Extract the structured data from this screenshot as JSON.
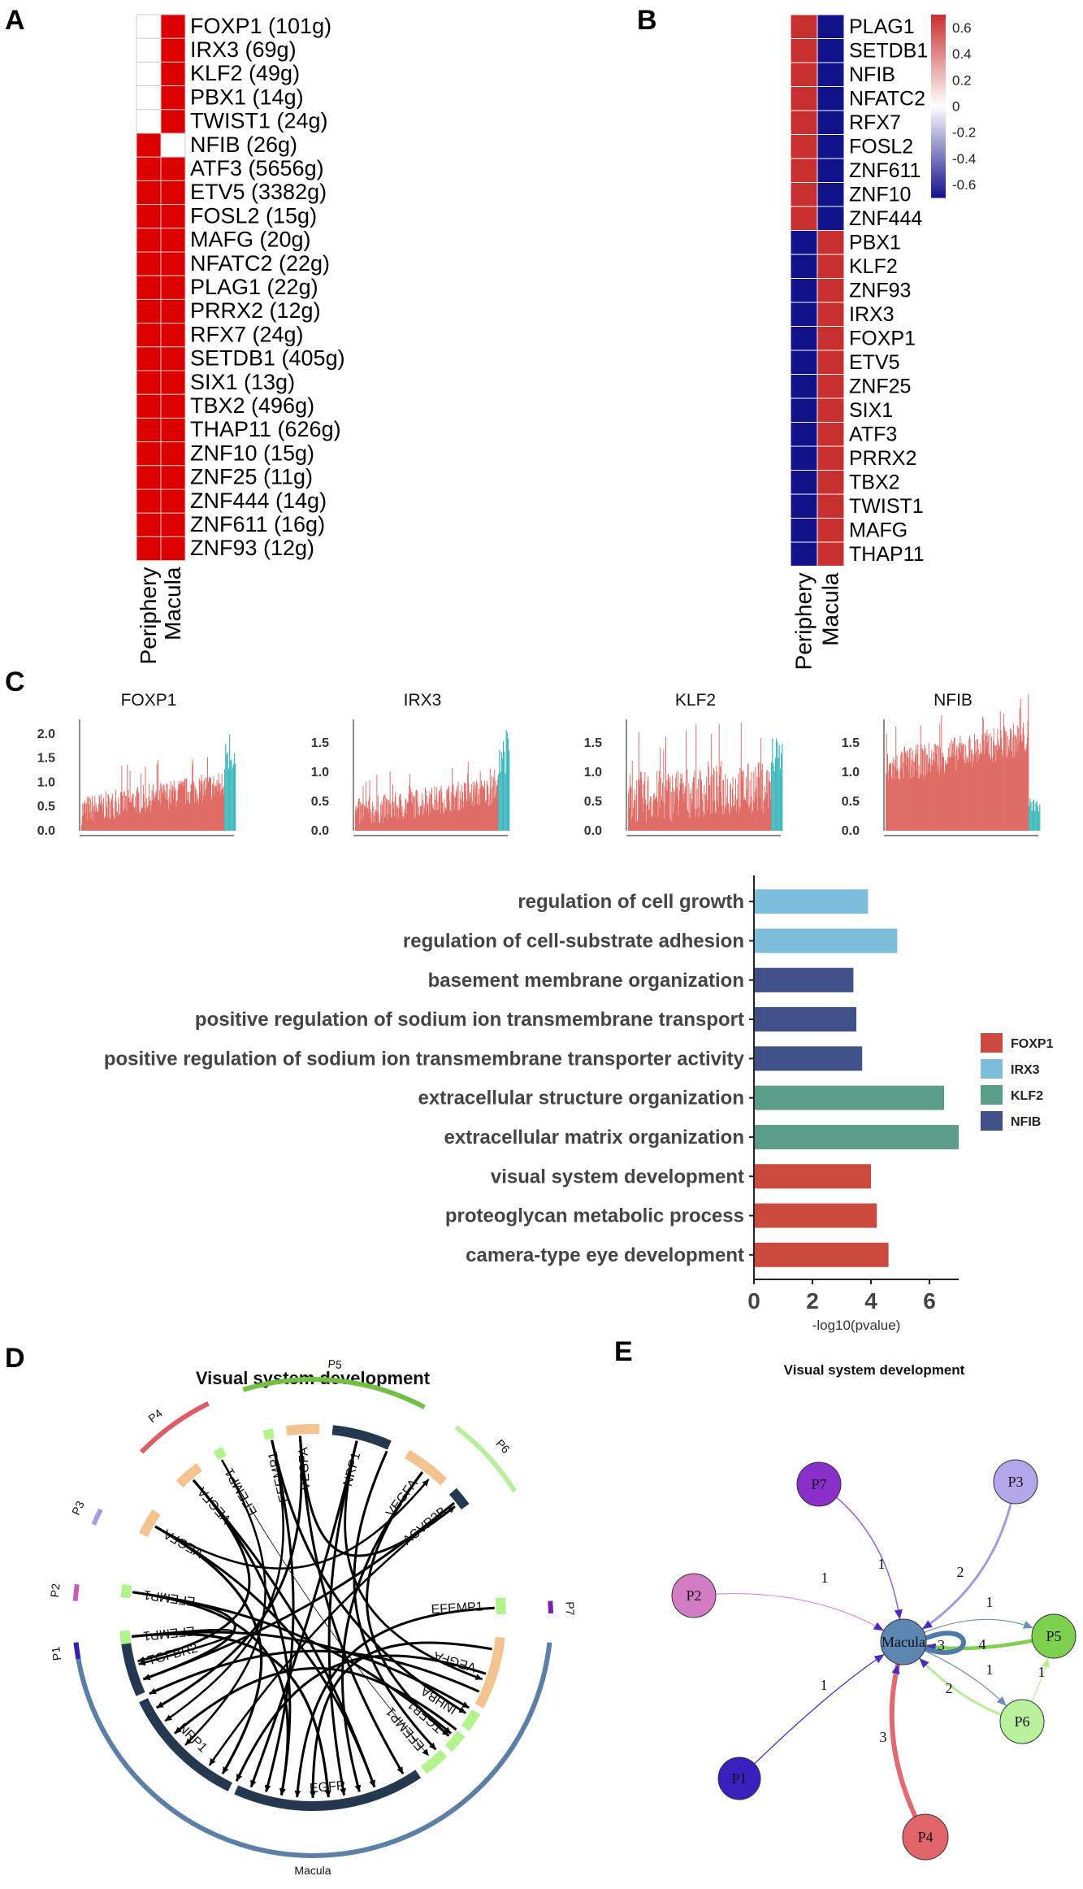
{
  "panel_labels": {
    "a": "A",
    "b": "B",
    "c": "C",
    "d": "D",
    "e": "E"
  },
  "chart_data": [
    {
      "type": "heatmap",
      "panel": "A",
      "columns": [
        "Periphery",
        "Macula"
      ],
      "rows": [
        "FOXP1 (101g)",
        "IRX3 (69g)",
        "KLF2 (49g)",
        "PBX1 (14g)",
        "TWIST1 (24g)",
        "NFIB (26g)",
        "ATF3 (5656g)",
        "ETV5 (3382g)",
        "FOSL2 (15g)",
        "MAFG (20g)",
        "NFATC2 (22g)",
        "PLAG1 (22g)",
        "PRRX2 (12g)",
        "RFX7 (24g)",
        "SETDB1 (405g)",
        "SIX1 (13g)",
        "TBX2 (496g)",
        "THAP11 (626g)",
        "ZNF10 (15g)",
        "ZNF25 (11g)",
        "ZNF444 (14g)",
        "ZNF611 (16g)",
        "ZNF93 (12g)"
      ],
      "values": [
        [
          0,
          1
        ],
        [
          0,
          1
        ],
        [
          0,
          1
        ],
        [
          0,
          1
        ],
        [
          0,
          1
        ],
        [
          1,
          0
        ],
        [
          1,
          1
        ],
        [
          1,
          1
        ],
        [
          1,
          1
        ],
        [
          1,
          1
        ],
        [
          1,
          1
        ],
        [
          1,
          1
        ],
        [
          1,
          1
        ],
        [
          1,
          1
        ],
        [
          1,
          1
        ],
        [
          1,
          1
        ],
        [
          1,
          1
        ],
        [
          1,
          1
        ],
        [
          1,
          1
        ],
        [
          1,
          1
        ],
        [
          1,
          1
        ],
        [
          1,
          1
        ],
        [
          1,
          1
        ]
      ],
      "on_color": "#dd0000",
      "off_color": "#ffffff"
    },
    {
      "type": "heatmap",
      "panel": "B",
      "columns": [
        "Periphery",
        "Macula"
      ],
      "rows": [
        "PLAG1",
        "SETDB1",
        "NFIB",
        "NFATC2",
        "RFX7",
        "FOSL2",
        "ZNF611",
        "ZNF10",
        "ZNF444",
        "PBX1",
        "KLF2",
        "ZNF93",
        "IRX3",
        "FOXP1",
        "ETV5",
        "ZNF25",
        "SIX1",
        "ATF3",
        "PRRX2",
        "TBX2",
        "TWIST1",
        "MAFG",
        "THAP11"
      ],
      "values": [
        [
          0.7,
          -0.7
        ],
        [
          0.7,
          -0.7
        ],
        [
          0.7,
          -0.7
        ],
        [
          0.7,
          -0.7
        ],
        [
          0.7,
          -0.7
        ],
        [
          0.7,
          -0.7
        ],
        [
          0.7,
          -0.7
        ],
        [
          0.7,
          -0.7
        ],
        [
          0.7,
          -0.7
        ],
        [
          -0.7,
          0.7
        ],
        [
          -0.7,
          0.7
        ],
        [
          -0.7,
          0.7
        ],
        [
          -0.7,
          0.7
        ],
        [
          -0.7,
          0.7
        ],
        [
          -0.7,
          0.7
        ],
        [
          -0.7,
          0.7
        ],
        [
          -0.7,
          0.7
        ],
        [
          -0.7,
          0.7
        ],
        [
          -0.7,
          0.7
        ],
        [
          -0.7,
          0.7
        ],
        [
          -0.7,
          0.7
        ],
        [
          -0.7,
          0.7
        ],
        [
          -0.7,
          0.7
        ]
      ],
      "colorbar_ticks": [
        "0.6",
        "0.4",
        "0.2",
        "0",
        "-0.2",
        "-0.4",
        "-0.6"
      ],
      "colorbar_range": [
        -0.7,
        0.7
      ],
      "high_color": "#c8302f",
      "low_color": "#12128a"
    },
    {
      "type": "bar",
      "panel": "C",
      "subplots": [
        {
          "title": "FOXP1",
          "yticks": [
            "2.0",
            "1.5",
            "1.0",
            "0.5",
            "0.0"
          ],
          "ylim": [
            0,
            2.3
          ],
          "n_bars": 260,
          "base_level": 0.42,
          "end_level": 0.95,
          "spread": 0.3,
          "teal_level": 2.15
        },
        {
          "title": "IRX3",
          "yticks": [
            "1.5",
            "1.0",
            "0.5",
            "0.0"
          ],
          "ylim": [
            0,
            1.9
          ],
          "n_bars": 260,
          "base_level": 0.3,
          "end_level": 0.7,
          "spread": 0.25,
          "teal_level": 1.75
        },
        {
          "title": "KLF2",
          "yticks": [
            "1.5",
            "1.0",
            "0.5",
            "0.0"
          ],
          "ylim": [
            0,
            1.9
          ],
          "n_bars": 260,
          "base_level": 0.55,
          "end_level": 0.75,
          "spread": 0.45,
          "teal_level": 1.6
        },
        {
          "title": "NFIB",
          "yticks": [
            "1.5",
            "1.0",
            "0.5",
            "0.0"
          ],
          "ylim": [
            0,
            1.9
          ],
          "n_bars": 260,
          "base_level": 1.05,
          "end_level": 1.6,
          "spread": 0.3,
          "teal_level": 0.55
        }
      ],
      "bar_color": "#e06c66",
      "tail_color": "#3fb8bc"
    },
    {
      "type": "bar",
      "panel": "C-enrichment",
      "orientation": "horizontal",
      "categories": [
        "regulation of cell growth",
        "regulation of cell-substrate adhesion",
        "basement membrane organization",
        "positive regulation of sodium ion transmembrane transport",
        "positive regulation of sodium ion transmembrane transporter activity",
        "extracellular structure organization",
        "extracellular matrix organization",
        "visual system development",
        "proteoglycan metabolic process",
        "camera-type eye development"
      ],
      "values": [
        3.9,
        4.9,
        3.4,
        3.5,
        3.7,
        6.5,
        7.0,
        4.0,
        4.2,
        4.6
      ],
      "groups": [
        "IRX3",
        "IRX3",
        "NFIB",
        "NFIB",
        "NFIB",
        "KLF2",
        "KLF2",
        "FOXP1",
        "FOXP1",
        "FOXP1"
      ],
      "xlim": [
        0,
        7
      ],
      "xticks": [
        "0",
        "2",
        "4",
        "6"
      ],
      "xlabel": "-log10(pvalue)",
      "legend": [
        {
          "name": "FOXP1",
          "color": "#cb4a3d"
        },
        {
          "name": "IRX3",
          "color": "#7ebedd"
        },
        {
          "name": "KLF2",
          "color": "#5a9d89"
        },
        {
          "name": "NFIB",
          "color": "#3f5188"
        }
      ]
    }
  ],
  "chord": {
    "title": "Visual system development",
    "groups": [
      {
        "label": "Macula",
        "color": "#5c7fa8"
      },
      {
        "label": "P1",
        "color": "#3b1fb0"
      },
      {
        "label": "P2",
        "color": "#c95fb4"
      },
      {
        "label": "P3",
        "color": "#a99be6"
      },
      {
        "label": "P4",
        "color": "#dd5c66"
      },
      {
        "label": "P5",
        "color": "#74c044"
      },
      {
        "label": "P6",
        "color": "#b8ee9e"
      },
      {
        "label": "P7",
        "color": "#7a1fb0"
      }
    ],
    "genes": [
      {
        "label": "TGFBR2",
        "color": "#24384f"
      },
      {
        "label": "NRP1",
        "color": "#24384f"
      },
      {
        "label": "EGFR",
        "color": "#24384f"
      },
      {
        "label": "EFEMP1",
        "color": "#b3f38c"
      },
      {
        "label": "TGFB1",
        "color": "#b3f38c"
      },
      {
        "label": "INHBA",
        "color": "#b3f38c"
      },
      {
        "label": "VEGFA",
        "color": "#f2c38f"
      },
      {
        "label": "EFEMP1",
        "color": "#b3f38c"
      },
      {
        "label": "EFEMP1",
        "color": "#b3f38c"
      },
      {
        "label": "EFEMP1",
        "color": "#b3f38c"
      },
      {
        "label": "VEGFA",
        "color": "#f2c38f"
      },
      {
        "label": "VEGFA",
        "color": "#f2c38f"
      },
      {
        "label": "EFEMP1",
        "color": "#b3f38c"
      },
      {
        "label": "EFEMP1",
        "color": "#b3f38c"
      },
      {
        "label": "VEGFA",
        "color": "#f2c38f"
      },
      {
        "label": "NRP1",
        "color": "#24384f"
      },
      {
        "label": "VEGFA",
        "color": "#f2c38f"
      },
      {
        "label": "ACVR2B",
        "color": "#24384f"
      }
    ]
  },
  "network": {
    "title": "Visual system development",
    "nodes": [
      {
        "id": "Macula",
        "label": "Macula",
        "color": "#5e86b3"
      },
      {
        "id": "P1",
        "label": "P1",
        "color": "#3a1fbf"
      },
      {
        "id": "P2",
        "label": "P2",
        "color": "#d37cc4"
      },
      {
        "id": "P3",
        "label": "P3",
        "color": "#b3a6ea"
      },
      {
        "id": "P4",
        "label": "P4",
        "color": "#e0646a"
      },
      {
        "id": "P5",
        "label": "P5",
        "color": "#7ed04f"
      },
      {
        "id": "P6",
        "label": "P6",
        "color": "#b9f19c"
      },
      {
        "id": "P7",
        "label": "P7",
        "color": "#8a2fc9"
      }
    ],
    "edges": [
      {
        "from": "P7",
        "to": "Macula",
        "weight": "1"
      },
      {
        "from": "P3",
        "to": "Macula",
        "weight": "2"
      },
      {
        "from": "P2",
        "to": "Macula",
        "weight": "1"
      },
      {
        "from": "P1",
        "to": "Macula",
        "weight": "1"
      },
      {
        "from": "P4",
        "to": "Macula",
        "weight": "3"
      },
      {
        "from": "Macula",
        "to": "P5",
        "weight": "1"
      },
      {
        "from": "P5",
        "to": "Macula",
        "weight": "4"
      },
      {
        "from": "Macula",
        "to": "Macula",
        "weight": "3"
      },
      {
        "from": "Macula",
        "to": "P6",
        "weight": "1"
      },
      {
        "from": "P6",
        "to": "Macula",
        "weight": "2"
      },
      {
        "from": "P6",
        "to": "P5",
        "weight": "1"
      }
    ]
  }
}
